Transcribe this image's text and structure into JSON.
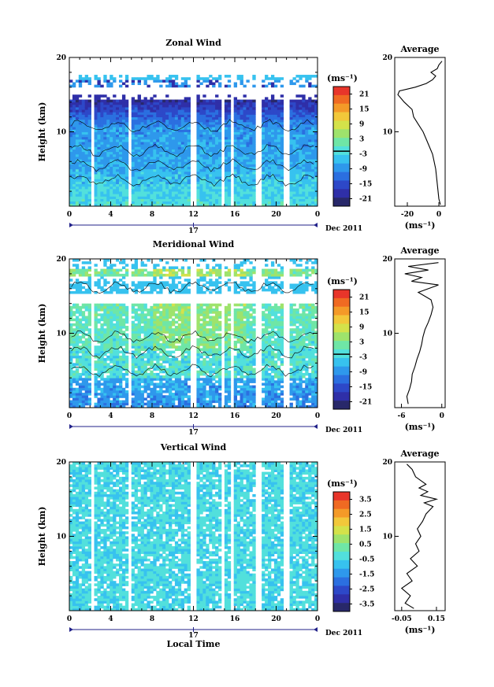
{
  "chart_data": [
    {
      "type": "heatmap",
      "title": "Zonal Wind",
      "ylabel": "Height (km)",
      "xlim": [
        0,
        24
      ],
      "ylim": [
        0,
        20
      ],
      "x_ticks": [
        "0",
        "4",
        "8",
        "12",
        "16",
        "20",
        "0"
      ],
      "y_ticks": [
        "20",
        "10"
      ],
      "date_label": "17",
      "date_suffix": "Dec 2011",
      "colorbar": {
        "unit": "(ms⁻¹)",
        "ticks": [
          "21",
          "15",
          "9",
          "3",
          "-3",
          "-9",
          "-15",
          "-21"
        ],
        "range": [
          -24,
          24
        ]
      },
      "average": {
        "title": "Average",
        "x_ticks": [
          "-20",
          "0"
        ],
        "xlabel": "(ms⁻¹)",
        "y_ticks": [
          "20",
          "10"
        ],
        "xlim": [
          -28,
          4
        ],
        "profile": [
          [
            0.2,
            1
          ],
          [
            1,
            0
          ],
          [
            2,
            -0.5
          ],
          [
            3,
            -1
          ],
          [
            4,
            -1.5
          ],
          [
            5,
            -2
          ],
          [
            6,
            -3
          ],
          [
            7,
            -4
          ],
          [
            8,
            -6
          ],
          [
            9,
            -8
          ],
          [
            10,
            -10
          ],
          [
            11,
            -13
          ],
          [
            12,
            -16
          ],
          [
            13,
            -17
          ],
          [
            14,
            -22
          ],
          [
            14.5,
            -24
          ],
          [
            15,
            -26
          ],
          [
            15.5,
            -25
          ],
          [
            16,
            -15
          ],
          [
            16.5,
            -8
          ],
          [
            17,
            -4
          ],
          [
            17.5,
            -2
          ],
          [
            18,
            -5
          ],
          [
            18.5,
            -1
          ],
          [
            19,
            0
          ],
          [
            19.5,
            2
          ]
        ]
      }
    },
    {
      "type": "heatmap",
      "title": "Meridional Wind",
      "ylabel": "Height (km)",
      "xlim": [
        0,
        24
      ],
      "ylim": [
        0,
        20
      ],
      "x_ticks": [
        "0",
        "4",
        "8",
        "12",
        "16",
        "20",
        "0"
      ],
      "y_ticks": [
        "20",
        "10"
      ],
      "date_label": "17",
      "date_suffix": "Dec 2011",
      "colorbar": {
        "unit": "(ms⁻¹)",
        "ticks": [
          "21",
          "15",
          "9",
          "3",
          "-3",
          "-9",
          "-15",
          "-21"
        ],
        "range": [
          -24,
          24
        ]
      },
      "average": {
        "title": "Average",
        "x_ticks": [
          "-6",
          "0"
        ],
        "xlabel": "(ms⁻¹)",
        "y_ticks": [
          "20",
          "10"
        ],
        "xlim": [
          -7,
          0.5
        ],
        "profile": [
          [
            0.5,
            -5
          ],
          [
            1.5,
            -5.2
          ],
          [
            2.5,
            -4.8
          ],
          [
            3.5,
            -4.5
          ],
          [
            4.5,
            -4.4
          ],
          [
            5.5,
            -4
          ],
          [
            6.5,
            -3.7
          ],
          [
            7.5,
            -3.3
          ],
          [
            8.5,
            -3
          ],
          [
            9.5,
            -2.8
          ],
          [
            10.5,
            -2.5
          ],
          [
            11.5,
            -2
          ],
          [
            12.5,
            -1.6
          ],
          [
            13.5,
            -1.3
          ],
          [
            14.5,
            -1.6
          ],
          [
            15.5,
            -3.5
          ],
          [
            16.5,
            -0.5
          ],
          [
            17,
            -4.5
          ],
          [
            17.5,
            -3
          ],
          [
            18,
            -5.5
          ],
          [
            18.5,
            -2
          ],
          [
            19,
            -5
          ],
          [
            19.5,
            -0.5
          ]
        ]
      }
    },
    {
      "type": "heatmap",
      "title": "Vertical Wind",
      "ylabel": "Height (km)",
      "xlabel": "Local Time",
      "xlim": [
        0,
        24
      ],
      "ylim": [
        0,
        20
      ],
      "x_ticks": [
        "0",
        "4",
        "8",
        "12",
        "16",
        "20",
        "0"
      ],
      "y_ticks": [
        "20",
        "10"
      ],
      "date_label": "17",
      "date_suffix": "Dec 2011",
      "colorbar": {
        "unit": "(ms⁻¹)",
        "ticks": [
          "3.5",
          "2.5",
          "1.5",
          "0.5",
          "-0.5",
          "-1.5",
          "-2.5",
          "-3.5"
        ],
        "range": [
          -4,
          4
        ]
      },
      "average": {
        "title": "Average",
        "x_ticks": [
          "-0.05",
          "0.15"
        ],
        "xlabel": "(ms⁻¹)",
        "y_ticks": [
          "20",
          "10"
        ],
        "xlim": [
          -0.09,
          0.2
        ],
        "profile": [
          [
            0.3,
            0.02
          ],
          [
            1,
            -0.03
          ],
          [
            2,
            0
          ],
          [
            3,
            -0.05
          ],
          [
            4,
            0.01
          ],
          [
            5,
            -0.02
          ],
          [
            6,
            0.04
          ],
          [
            7,
            0.0
          ],
          [
            8,
            0.05
          ],
          [
            9,
            0.03
          ],
          [
            10,
            0.06
          ],
          [
            11,
            0.04
          ],
          [
            12,
            0.07
          ],
          [
            13,
            0.09
          ],
          [
            14,
            0.13
          ],
          [
            14.5,
            0.08
          ],
          [
            15,
            0.15
          ],
          [
            15.5,
            0.06
          ],
          [
            16,
            0.1
          ],
          [
            16.5,
            0.05
          ],
          [
            17,
            0.09
          ],
          [
            18,
            0.03
          ],
          [
            19,
            0.01
          ],
          [
            19.7,
            -0.02
          ]
        ]
      }
    }
  ]
}
